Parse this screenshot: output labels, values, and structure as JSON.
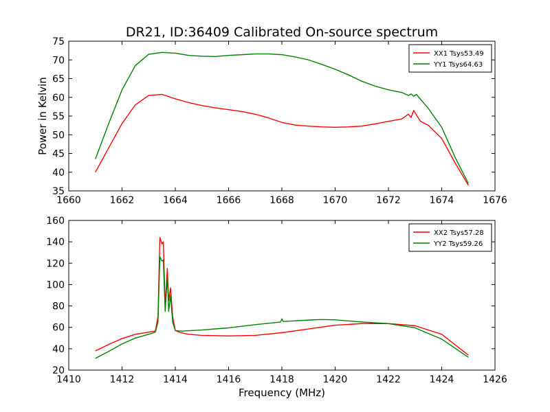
{
  "figure": {
    "title": "DR21, ID:36409 Calibrated On-source spectrum"
  },
  "chart_data": [
    {
      "type": "line",
      "title": "DR21, ID:36409 Calibrated On-source spectrum",
      "xlabel": "",
      "ylabel": "Power in Kelvin",
      "xlim": [
        1660,
        1676
      ],
      "ylim": [
        35,
        75
      ],
      "xticks": [
        "1660",
        "1662",
        "1664",
        "1666",
        "1668",
        "1670",
        "1672",
        "1674",
        "1676"
      ],
      "yticks": [
        "35",
        "40",
        "45",
        "50",
        "55",
        "60",
        "65",
        "70",
        "75"
      ],
      "legend_position": "top-right",
      "series": [
        {
          "name": "XX1 Tsys53.49",
          "color": "#ff0000",
          "points": [
            [
              1661.0,
              40.0
            ],
            [
              1661.5,
              46.5
            ],
            [
              1662.0,
              53.0
            ],
            [
              1662.5,
              58.0
            ],
            [
              1663.0,
              60.5
            ],
            [
              1663.5,
              60.8
            ],
            [
              1664.0,
              59.6
            ],
            [
              1664.5,
              58.6
            ],
            [
              1665.0,
              57.8
            ],
            [
              1665.5,
              57.2
            ],
            [
              1666.0,
              56.7
            ],
            [
              1666.5,
              56.2
            ],
            [
              1667.0,
              55.5
            ],
            [
              1667.5,
              54.5
            ],
            [
              1668.0,
              53.3
            ],
            [
              1668.5,
              52.6
            ],
            [
              1669.0,
              52.3
            ],
            [
              1669.5,
              52.1
            ],
            [
              1670.0,
              52.0
            ],
            [
              1670.5,
              52.1
            ],
            [
              1671.0,
              52.3
            ],
            [
              1671.5,
              52.9
            ],
            [
              1672.0,
              53.6
            ],
            [
              1672.5,
              54.2
            ],
            [
              1672.75,
              55.5
            ],
            [
              1672.85,
              54.6
            ],
            [
              1672.95,
              56.5
            ],
            [
              1673.05,
              55.3
            ],
            [
              1673.2,
              53.6
            ],
            [
              1673.5,
              52.5
            ],
            [
              1674.0,
              49.0
            ],
            [
              1674.5,
              42.5
            ],
            [
              1675.0,
              36.5
            ]
          ]
        },
        {
          "name": "YY1 Tsys64.63",
          "color": "#008000",
          "points": [
            [
              1661.0,
              43.5
            ],
            [
              1661.5,
              53.0
            ],
            [
              1662.0,
              62.0
            ],
            [
              1662.5,
              68.5
            ],
            [
              1663.0,
              71.5
            ],
            [
              1663.5,
              72.0
            ],
            [
              1664.0,
              71.8
            ],
            [
              1664.5,
              71.2
            ],
            [
              1665.0,
              71.0
            ],
            [
              1665.5,
              70.9
            ],
            [
              1666.0,
              71.2
            ],
            [
              1666.5,
              71.4
            ],
            [
              1667.0,
              71.6
            ],
            [
              1667.5,
              71.6
            ],
            [
              1668.0,
              71.4
            ],
            [
              1668.5,
              70.8
            ],
            [
              1669.0,
              70.0
            ],
            [
              1669.5,
              68.8
            ],
            [
              1670.0,
              67.5
            ],
            [
              1670.5,
              66.0
            ],
            [
              1671.0,
              64.3
            ],
            [
              1671.5,
              63.0
            ],
            [
              1672.0,
              62.0
            ],
            [
              1672.5,
              61.3
            ],
            [
              1672.75,
              60.5
            ],
            [
              1672.85,
              60.9
            ],
            [
              1672.95,
              60.3
            ],
            [
              1673.05,
              60.8
            ],
            [
              1673.2,
              59.5
            ],
            [
              1673.5,
              57.0
            ],
            [
              1674.0,
              52.0
            ],
            [
              1674.5,
              44.0
            ],
            [
              1675.0,
              37.0
            ]
          ]
        }
      ]
    },
    {
      "type": "line",
      "title": "",
      "xlabel": "Frequency (MHz)",
      "ylabel": "",
      "xlim": [
        1410,
        1426
      ],
      "ylim": [
        20,
        160
      ],
      "xticks": [
        "1410",
        "1412",
        "1414",
        "1416",
        "1418",
        "1420",
        "1422",
        "1424",
        "1426"
      ],
      "yticks": [
        "20",
        "40",
        "60",
        "80",
        "100",
        "120",
        "140",
        "160"
      ],
      "legend_position": "top-right",
      "series": [
        {
          "name": "XX2 Tsys57.28",
          "color": "#ff0000",
          "points": [
            [
              1411.0,
              38.0
            ],
            [
              1411.5,
              44.0
            ],
            [
              1412.0,
              49.5
            ],
            [
              1412.5,
              53.5
            ],
            [
              1413.0,
              55.5
            ],
            [
              1413.25,
              56.5
            ],
            [
              1413.35,
              70.0
            ],
            [
              1413.42,
              144.0
            ],
            [
              1413.5,
              138.0
            ],
            [
              1413.55,
              140.0
            ],
            [
              1413.62,
              80.0
            ],
            [
              1413.7,
              115.0
            ],
            [
              1413.75,
              85.0
            ],
            [
              1413.82,
              97.0
            ],
            [
              1413.9,
              70.0
            ],
            [
              1414.0,
              57.0
            ],
            [
              1414.2,
              55.0
            ],
            [
              1414.5,
              53.5
            ],
            [
              1415.0,
              52.5
            ],
            [
              1416.0,
              52.0
            ],
            [
              1417.0,
              52.5
            ],
            [
              1418.0,
              55.0
            ],
            [
              1419.0,
              58.5
            ],
            [
              1420.0,
              62.0
            ],
            [
              1421.0,
              63.5
            ],
            [
              1422.0,
              63.5
            ],
            [
              1423.0,
              61.5
            ],
            [
              1424.0,
              53.5
            ],
            [
              1425.0,
              34.0
            ]
          ]
        },
        {
          "name": "YY2 Tsys59.26",
          "color": "#008000",
          "points": [
            [
              1411.0,
              31.0
            ],
            [
              1411.5,
              37.5
            ],
            [
              1412.0,
              44.5
            ],
            [
              1412.5,
              50.0
            ],
            [
              1413.0,
              53.5
            ],
            [
              1413.25,
              55.5
            ],
            [
              1413.35,
              65.0
            ],
            [
              1413.42,
              126.0
            ],
            [
              1413.5,
              122.0
            ],
            [
              1413.55,
              123.0
            ],
            [
              1413.62,
              75.0
            ],
            [
              1413.7,
              108.0
            ],
            [
              1413.75,
              75.0
            ],
            [
              1413.82,
              90.0
            ],
            [
              1413.9,
              65.0
            ],
            [
              1414.0,
              57.0
            ],
            [
              1414.2,
              56.5
            ],
            [
              1415.0,
              57.5
            ],
            [
              1416.0,
              59.5
            ],
            [
              1417.0,
              62.5
            ],
            [
              1417.95,
              65.0
            ],
            [
              1418.0,
              68.0
            ],
            [
              1418.05,
              65.5
            ],
            [
              1419.0,
              66.8
            ],
            [
              1419.5,
              67.3
            ],
            [
              1420.0,
              67.0
            ],
            [
              1421.0,
              65.0
            ],
            [
              1422.0,
              63.5
            ],
            [
              1423.0,
              59.5
            ],
            [
              1424.0,
              49.0
            ],
            [
              1425.0,
              32.0
            ]
          ]
        }
      ]
    }
  ]
}
